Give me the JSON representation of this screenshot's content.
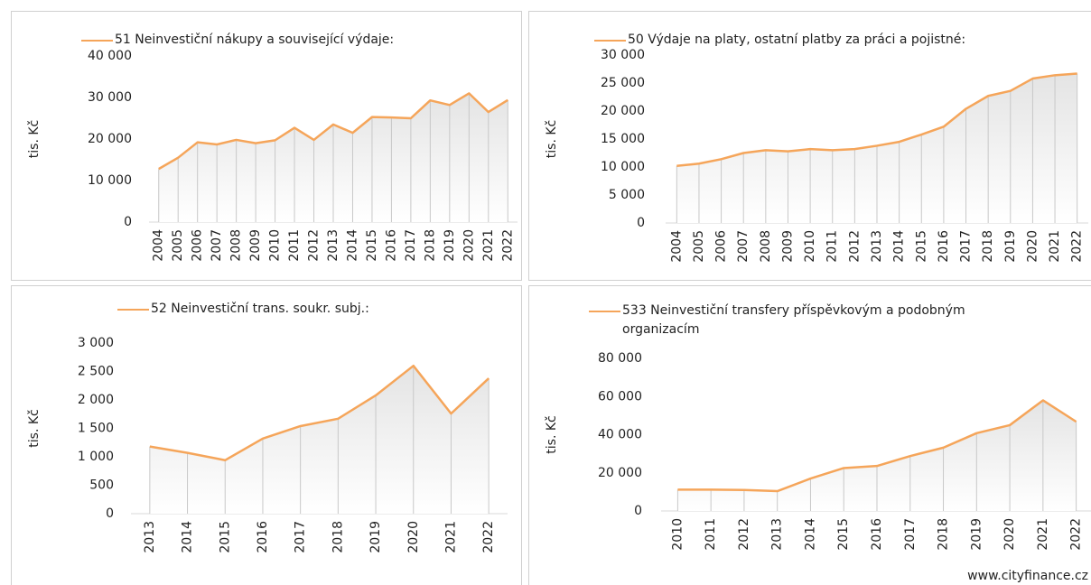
{
  "chart_data": [
    {
      "type": "line",
      "ylabel": "tis. Kč",
      "categories": [
        "2004",
        "2005",
        "2006",
        "2007",
        "2008",
        "2009",
        "2010",
        "2011",
        "2012",
        "2013",
        "2014",
        "2015",
        "2016",
        "2017",
        "2018",
        "2019",
        "2020",
        "2021",
        "2022"
      ],
      "series": [
        {
          "name": "51 Neinvestiční nákupy a související výdaje:",
          "color": "#f5a55a",
          "values": [
            12800,
            15500,
            19200,
            18700,
            19800,
            19000,
            19700,
            22700,
            19800,
            23500,
            21500,
            25300,
            25200,
            25000,
            29300,
            28200,
            31000,
            26500,
            29400
          ]
        }
      ],
      "ylim": [
        0,
        40000
      ],
      "yticks": [
        0,
        {
          "value": 10000,
          "label": "10 000"
        },
        {
          "value": 20000,
          "label": "20 000"
        },
        {
          "value": 30000,
          "label": "30 000"
        },
        {
          "value": 40000,
          "label": "40 000"
        }
      ]
    },
    {
      "type": "line",
      "ylabel": "tis. Kč",
      "categories": [
        "2004",
        "2005",
        "2006",
        "2007",
        "2008",
        "2009",
        "2010",
        "2011",
        "2012",
        "2013",
        "2014",
        "2015",
        "2016",
        "2017",
        "2018",
        "2019",
        "2020",
        "2021",
        "2022"
      ],
      "series": [
        {
          "name": "50 Výdaje na platy, ostatní platby za práci a pojistné:",
          "color": "#f5a55a",
          "values": [
            10200,
            10600,
            11400,
            12500,
            13000,
            12800,
            13200,
            13000,
            13200,
            13800,
            14500,
            15800,
            17200,
            20400,
            22700,
            23600,
            25800,
            26400,
            26700
          ]
        }
      ],
      "ylim": [
        0,
        30000
      ],
      "yticks": [
        0,
        {
          "value": 5000,
          "label": "5 000"
        },
        {
          "value": 10000,
          "label": "10 000"
        },
        {
          "value": 15000,
          "label": "15 000"
        },
        {
          "value": 20000,
          "label": "20 000"
        },
        {
          "value": 25000,
          "label": "25 000"
        },
        {
          "value": 30000,
          "label": "30 000"
        }
      ]
    },
    {
      "type": "line",
      "ylabel": "tis. Kč",
      "categories": [
        "2013",
        "2014",
        "2015",
        "2016",
        "2017",
        "2018",
        "2019",
        "2020",
        "2021",
        "2022"
      ],
      "series": [
        {
          "name": "52 Neinvestiční trans. soukr. subj.:",
          "color": "#f5a55a",
          "values": [
            1180,
            1070,
            940,
            1320,
            1540,
            1670,
            2080,
            2600,
            1760,
            2380
          ]
        }
      ],
      "ylim": [
        0,
        3000
      ],
      "yticks": [
        0,
        500,
        {
          "value": 1000,
          "label": "1 000"
        },
        {
          "value": 1500,
          "label": "1 500"
        },
        {
          "value": 2000,
          "label": "2 000"
        },
        {
          "value": 2500,
          "label": "2 500"
        },
        {
          "value": 3000,
          "label": "3 000"
        }
      ]
    },
    {
      "type": "line",
      "ylabel": "tis. Kč",
      "categories": [
        "2010",
        "2011",
        "2012",
        "2013",
        "2014",
        "2015",
        "2016",
        "2017",
        "2018",
        "2019",
        "2020",
        "2021",
        "2022"
      ],
      "series": [
        {
          "name": "533 Neinvestiční transfery příspěvkovým a podobným organizacím",
          "color": "#f5a55a",
          "values": [
            11200,
            11200,
            11000,
            10400,
            17000,
            22500,
            23600,
            28800,
            33200,
            40800,
            45000,
            58000,
            46800
          ]
        }
      ],
      "ylim": [
        0,
        80000
      ],
      "yticks": [
        0,
        {
          "value": 20000,
          "label": "20 000"
        },
        {
          "value": 40000,
          "label": "40 000"
        },
        {
          "value": 60000,
          "label": "60 000"
        },
        {
          "value": 80000,
          "label": "80 000"
        }
      ]
    }
  ],
  "footer": "www.cityfinance.cz"
}
